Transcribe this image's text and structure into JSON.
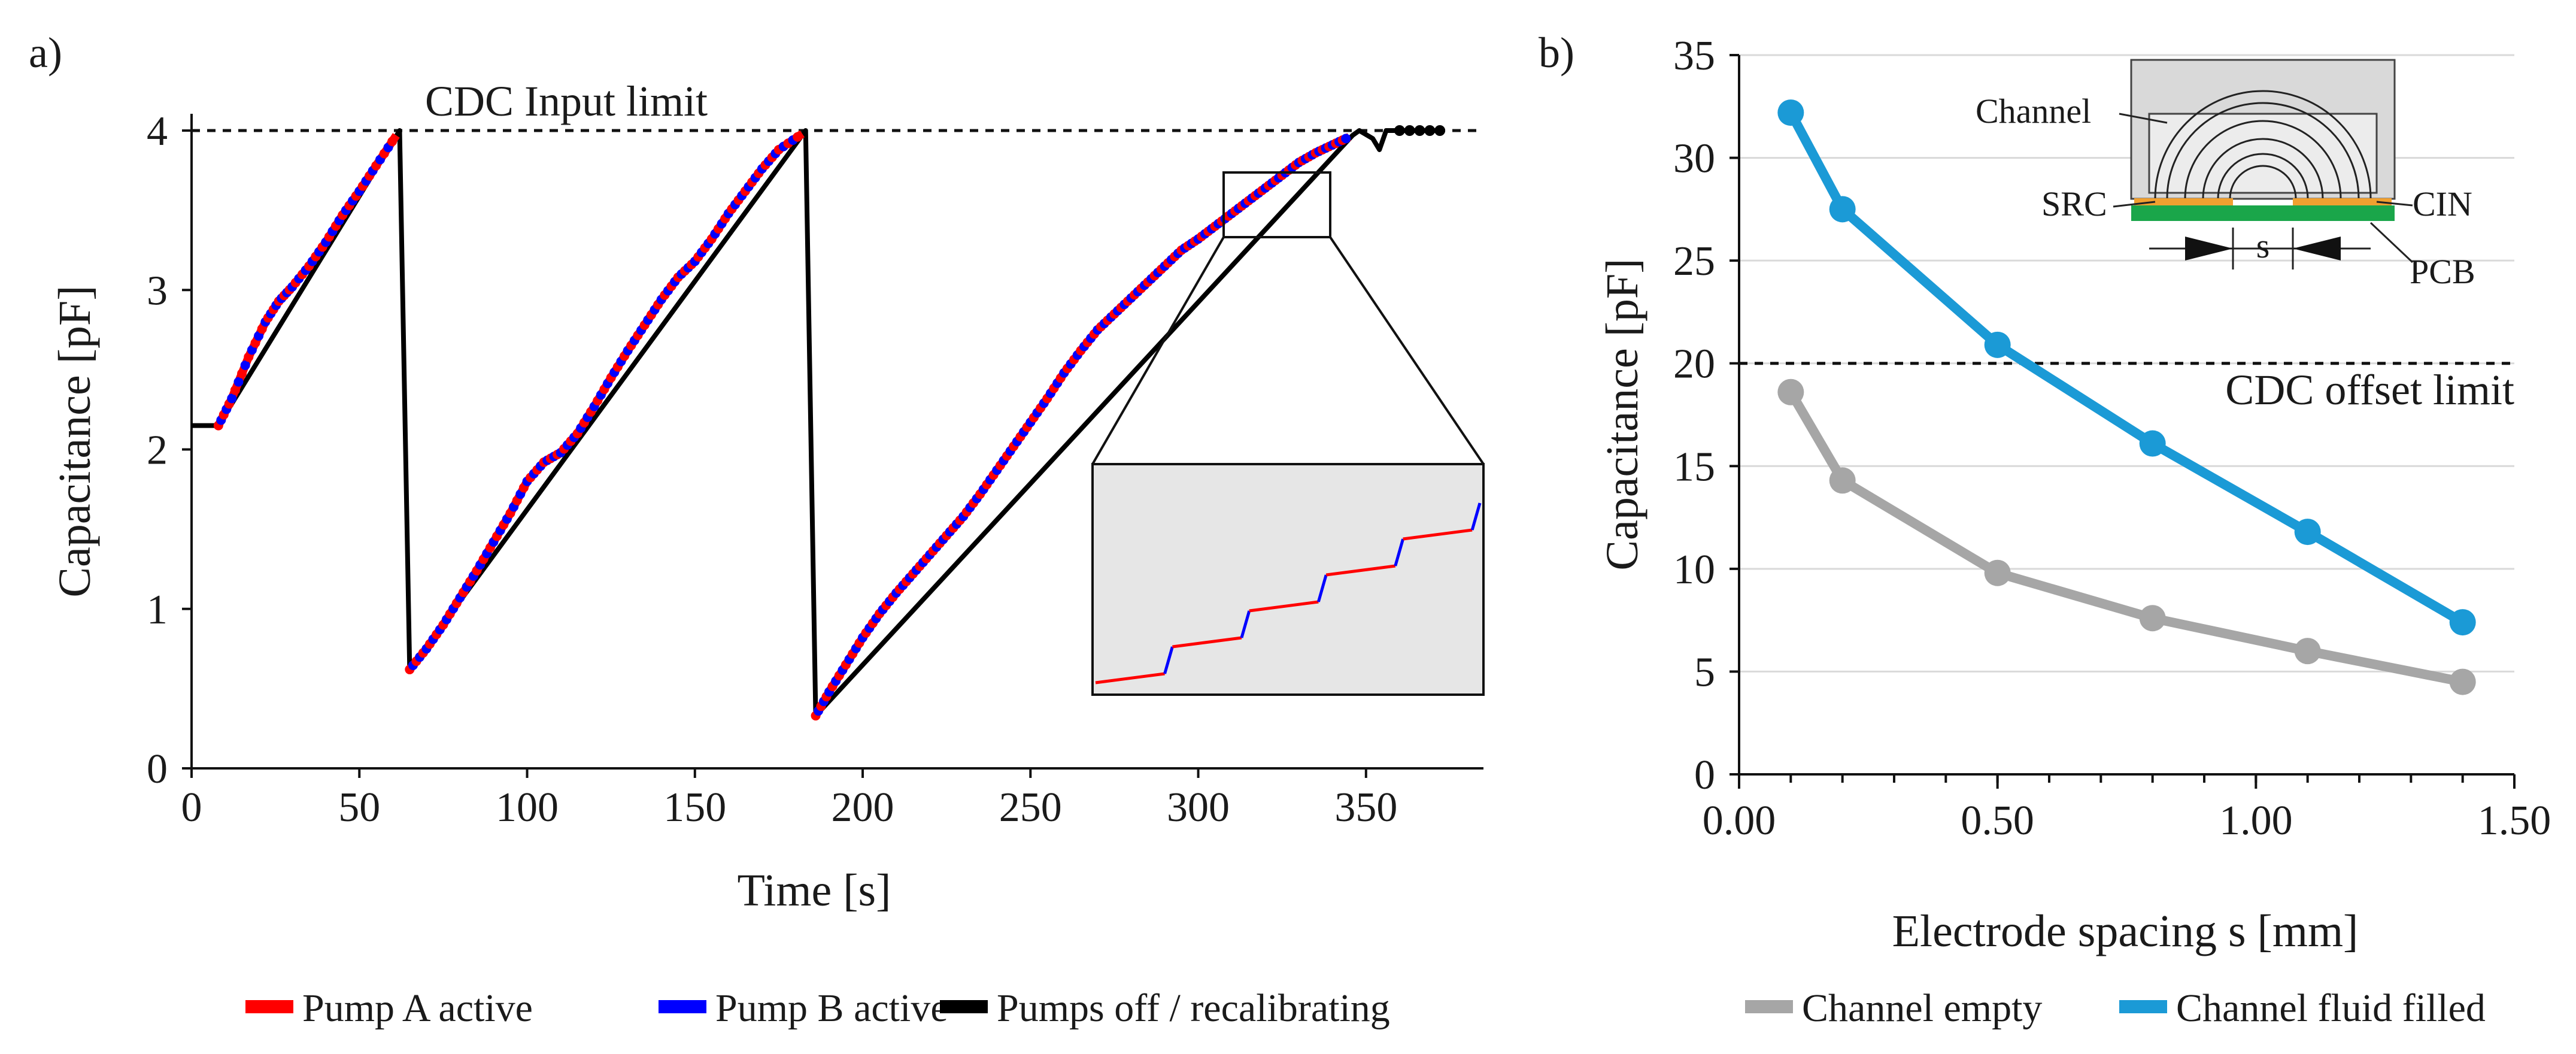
{
  "panel_labels": {
    "a": "a)",
    "b": "b)"
  },
  "chart_data": [
    {
      "id": "a",
      "type": "line",
      "xlabel": "Time [s]",
      "ylabel": "Capacitance [pF]",
      "xlim": [
        0,
        385
      ],
      "ylim": [
        0,
        4.1
      ],
      "xticks": [
        0,
        50,
        100,
        150,
        200,
        250,
        300,
        350
      ],
      "yticks": [
        0,
        1,
        2,
        3,
        4
      ],
      "limit_line": {
        "value": 4.0,
        "label": "CDC Input limit"
      },
      "legend": {
        "placement": "bottom-left",
        "entries": [
          {
            "label": "Pump A active",
            "color": "#ff0000"
          },
          {
            "label": "Pump B active",
            "color": "#0000ff"
          },
          {
            "label": "Pumps off / recalibrating",
            "color": "#000000"
          }
        ]
      },
      "series": [
        {
          "name": "Pumps off / recalibrating",
          "color": "#000000",
          "x": [
            0,
            8,
            8,
            62,
            65,
            183,
            186,
            346,
            348,
            352,
            354,
            356,
            372
          ],
          "y": [
            2.15,
            2.15,
            2.15,
            4.0,
            0.62,
            4.0,
            0.33,
            3.97,
            4.0,
            3.95,
            3.88,
            4.0,
            4.0
          ]
        },
        {
          "name": "Pump A / Pump B active",
          "colors": [
            "#ff0000",
            "#0000ff"
          ],
          "segments": [
            {
              "x": [
                8,
                12,
                17,
                22,
                26,
                30,
                35,
                40,
                45,
                50,
                55,
                61
              ],
              "y": [
                2.15,
                2.32,
                2.58,
                2.8,
                2.93,
                3.02,
                3.15,
                3.3,
                3.47,
                3.62,
                3.78,
                3.97
              ]
            },
            {
              "x": [
                65,
                70,
                75,
                80,
                85,
                90,
                95,
                100,
                105,
                110,
                115,
                120,
                125,
                130,
                135,
                140,
                145,
                150,
                155,
                160,
                165,
                170,
                175,
                182
              ],
              "y": [
                0.62,
                0.75,
                0.9,
                1.07,
                1.24,
                1.42,
                1.6,
                1.8,
                1.92,
                1.98,
                2.1,
                2.27,
                2.45,
                2.62,
                2.78,
                2.94,
                3.08,
                3.18,
                3.32,
                3.48,
                3.62,
                3.76,
                3.88,
                3.98
              ]
            },
            {
              "x": [
                186,
                190,
                195,
                200,
                205,
                210,
                215,
                220,
                225,
                230,
                235,
                240,
                245,
                250,
                255,
                260,
                265,
                270,
                275,
                280,
                285,
                290,
                295,
                300,
                305,
                310,
                315,
                320,
                325,
                330,
                335,
                340,
                345
              ],
              "y": [
                0.33,
                0.48,
                0.65,
                0.82,
                0.97,
                1.1,
                1.22,
                1.34,
                1.46,
                1.58,
                1.72,
                1.87,
                2.02,
                2.17,
                2.32,
                2.48,
                2.62,
                2.75,
                2.85,
                2.95,
                3.05,
                3.15,
                3.25,
                3.32,
                3.4,
                3.48,
                3.56,
                3.64,
                3.72,
                3.8,
                3.86,
                3.91,
                3.96
              ]
            }
          ]
        }
      ],
      "inset": {
        "zoom_from_x": [
          307,
          340
        ],
        "zoom_from_y": [
          3.33,
          3.72
        ],
        "steps": 5
      }
    },
    {
      "id": "b",
      "type": "line",
      "xlabel": "Electrode spacing s [mm]",
      "ylabel": "Capacitance [pF]",
      "xlim": [
        0,
        1.5
      ],
      "ylim": [
        0,
        35
      ],
      "xticks": [
        "0.00",
        "0.50",
        "1.00",
        "1.50"
      ],
      "yticks": [
        0,
        5,
        10,
        15,
        20,
        25,
        30,
        35
      ],
      "grid": true,
      "limit_line": {
        "value": 20,
        "label": "CDC offset limit"
      },
      "categories": [
        0.1,
        0.2,
        0.5,
        0.8,
        1.1,
        1.4
      ],
      "series": [
        {
          "name": "Channel empty",
          "color": "#a6a6a6",
          "values": [
            18.6,
            14.3,
            9.8,
            7.6,
            6.0,
            4.5
          ]
        },
        {
          "name": "Channel fluid filled",
          "color": "#1b9ad6",
          "values": [
            32.2,
            27.5,
            20.9,
            16.1,
            11.8,
            7.4
          ]
        }
      ],
      "legend": {
        "placement": "bottom"
      },
      "schematic_labels": {
        "channel": "Channel",
        "src": "SRC",
        "cin": "CIN",
        "pcb": "PCB",
        "spacing": "s"
      }
    }
  ]
}
